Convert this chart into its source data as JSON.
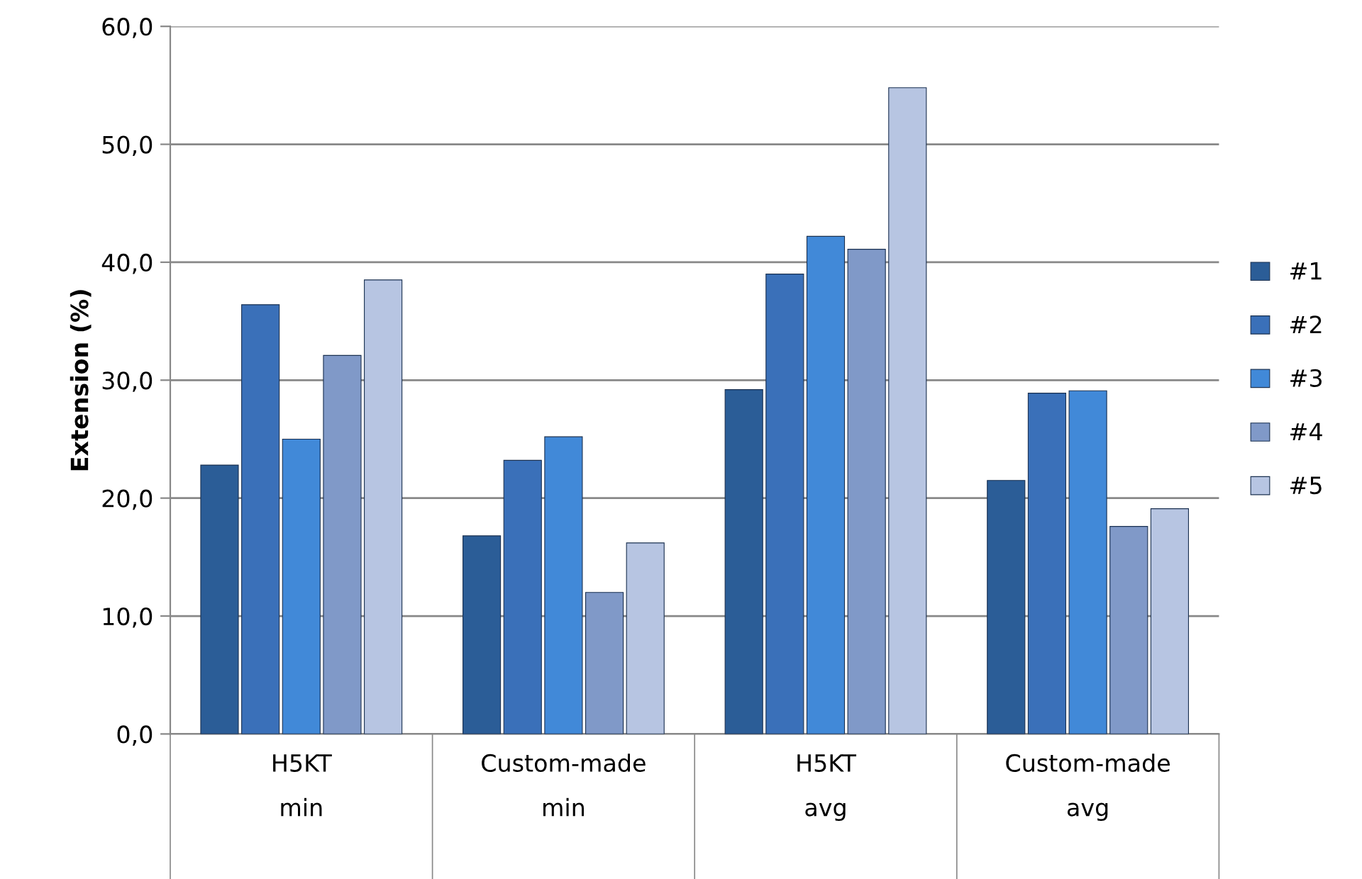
{
  "chart_data": {
    "type": "bar",
    "ylabel": "Extension (%)",
    "categories": [
      "H5KT\nmin",
      "Custom-made\nmin",
      "H5KT\navg",
      "Custom-made\navg"
    ],
    "series": [
      {
        "name": "#1",
        "color": "#2b5d97",
        "values": [
          22.8,
          16.8,
          29.2,
          21.5
        ]
      },
      {
        "name": "#2",
        "color": "#3a70b9",
        "values": [
          36.4,
          23.2,
          39.0,
          28.9
        ]
      },
      {
        "name": "#3",
        "color": "#4189d8",
        "values": [
          25.0,
          25.2,
          42.2,
          29.1
        ]
      },
      {
        "name": "#4",
        "color": "#8099c8",
        "values": [
          32.1,
          12.0,
          41.1,
          17.6
        ]
      },
      {
        "name": "#5",
        "color": "#b7c5e2",
        "values": [
          38.5,
          16.2,
          54.8,
          19.1
        ]
      }
    ],
    "ylim": [
      0,
      60
    ],
    "yticks": [
      {
        "value": 0,
        "label": "0,0"
      },
      {
        "value": 10,
        "label": "10,0"
      },
      {
        "value": 20,
        "label": "20,0"
      },
      {
        "value": 30,
        "label": "30,0"
      },
      {
        "value": 40,
        "label": "40,0"
      },
      {
        "value": 50,
        "label": "50,0"
      },
      {
        "value": 60,
        "label": "60,0"
      }
    ],
    "grid": "y",
    "legend": "right"
  }
}
